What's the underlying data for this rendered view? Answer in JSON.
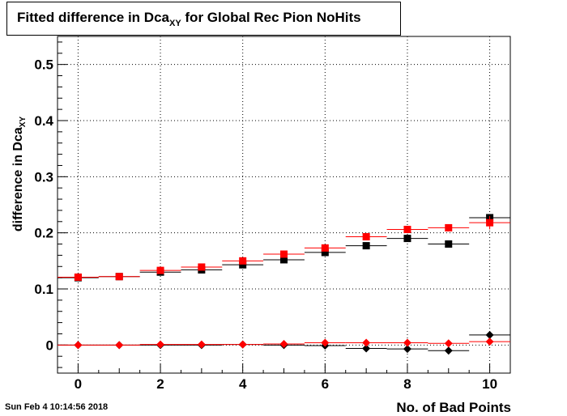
{
  "chart_data": {
    "type": "scatter",
    "title_main": "Fitted difference in Dca",
    "title_sub": "XY",
    "title_rest": " for Global Rec Pion NoHits",
    "xlabel": "No. of Bad Points",
    "ylabel_main": "difference in Dca",
    "ylabel_sub": "XY",
    "xlim": [
      -0.5,
      10.5
    ],
    "ylim": [
      -0.05,
      0.55
    ],
    "xticks": [
      0,
      2,
      4,
      6,
      8,
      10
    ],
    "yticks": [
      0,
      0.1,
      0.2,
      0.3,
      0.4,
      0.5
    ],
    "ytick_labels": [
      "0",
      "0.1",
      "0.2",
      "0.3",
      "0.4",
      "0.5"
    ],
    "grid": true,
    "x": [
      0,
      1,
      2,
      3,
      4,
      5,
      6,
      7,
      8,
      9,
      10
    ],
    "series": [
      {
        "marker": "square",
        "color": "#000000",
        "values": [
          0.12,
          0.122,
          0.13,
          0.134,
          0.143,
          0.152,
          0.165,
          0.177,
          0.19,
          0.18,
          0.227
        ],
        "errors": [
          0.002,
          0.002,
          0.002,
          0.002,
          0.002,
          0.003,
          0.003,
          0.003,
          0.004,
          0.004,
          0.006
        ]
      },
      {
        "marker": "square",
        "color": "#ff0000",
        "values": [
          0.121,
          0.122,
          0.133,
          0.139,
          0.15,
          0.162,
          0.173,
          0.193,
          0.206,
          0.209,
          0.218
        ],
        "errors": [
          0.002,
          0.002,
          0.002,
          0.002,
          0.002,
          0.003,
          0.003,
          0.004,
          0.004,
          0.006,
          0.012
        ]
      },
      {
        "marker": "diamond",
        "color": "#000000",
        "values": [
          0.0,
          0.0,
          0.0,
          0.0,
          0.001,
          0.0,
          -0.001,
          -0.006,
          -0.007,
          -0.01,
          0.018
        ],
        "errors": [
          0.001,
          0.001,
          0.001,
          0.001,
          0.001,
          0.001,
          0.002,
          0.002,
          0.002,
          0.003,
          0.004
        ]
      },
      {
        "marker": "diamond",
        "color": "#ff0000",
        "values": [
          0.0,
          0.0,
          0.001,
          0.001,
          0.001,
          0.002,
          0.004,
          0.004,
          0.004,
          0.003,
          0.006
        ],
        "errors": [
          0.001,
          0.001,
          0.001,
          0.001,
          0.001,
          0.001,
          0.002,
          0.002,
          0.002,
          0.003,
          0.004
        ]
      }
    ]
  },
  "timestamp": "Sun Feb  4 10:14:56 2018"
}
